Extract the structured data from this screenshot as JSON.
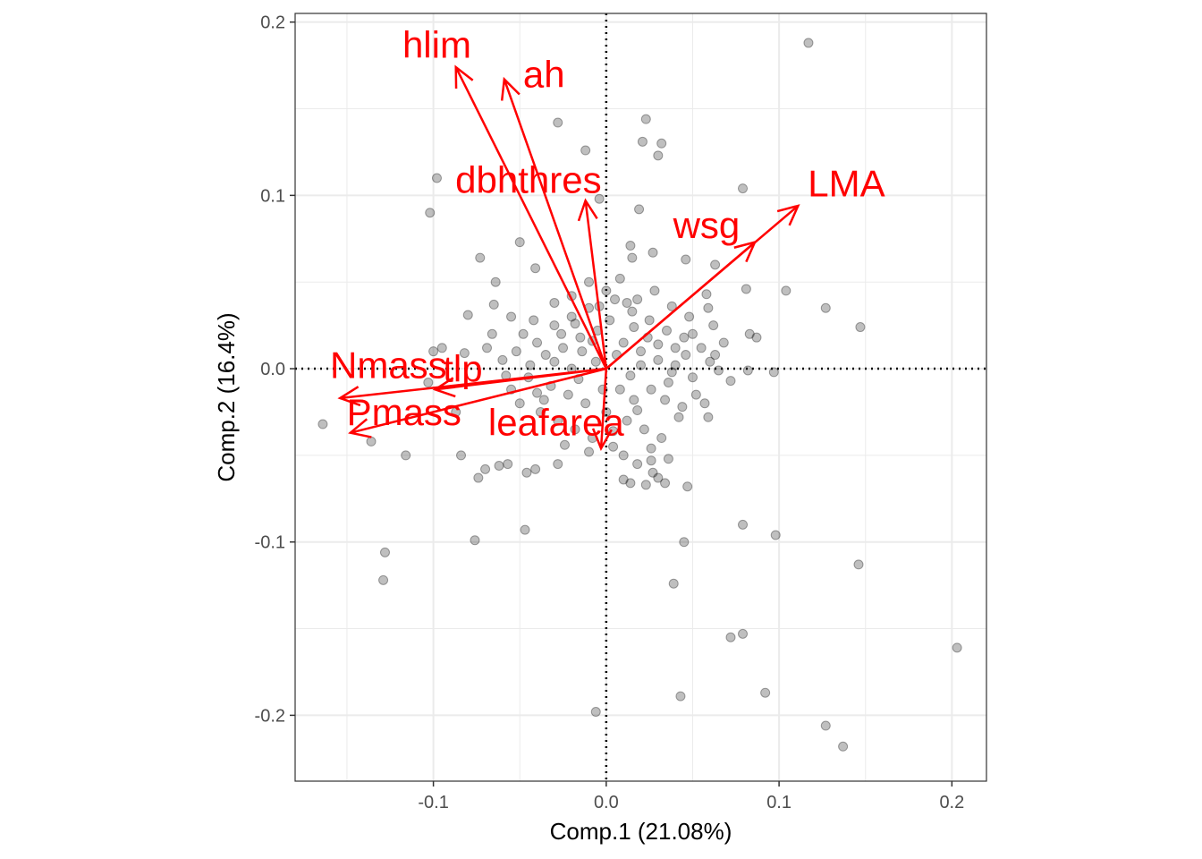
{
  "chart_data": {
    "type": "scatter",
    "title": "",
    "xlabel": "Comp.1 (21.08%)",
    "ylabel": "Comp.2 (16.4%)",
    "xlim": [
      -0.18,
      0.22
    ],
    "ylim": [
      -0.238,
      0.205
    ],
    "x_ticks": [
      -0.1,
      0.0,
      0.1,
      0.2
    ],
    "x_tick_labels": [
      "-0.1",
      "0.0",
      "0.1",
      "0.2"
    ],
    "y_ticks": [
      -0.2,
      -0.1,
      0.0,
      0.1,
      0.2
    ],
    "y_tick_labels": [
      "-0.2",
      "-0.1",
      "0.0",
      "0.1",
      "0.2"
    ],
    "grid": true,
    "reference_lines": {
      "x": 0,
      "y": 0,
      "style": "dotted"
    },
    "colors": {
      "points": "#000000",
      "vectors": "#ff0000",
      "grid": "#ebebeb",
      "panel_border": "#333333"
    },
    "points": [
      [
        0.117,
        0.188
      ],
      [
        0.023,
        0.144
      ],
      [
        -0.028,
        0.142
      ],
      [
        0.021,
        0.131
      ],
      [
        0.032,
        0.13
      ],
      [
        0.03,
        0.123
      ],
      [
        -0.012,
        0.126
      ],
      [
        0.079,
        0.104
      ],
      [
        -0.098,
        0.11
      ],
      [
        -0.004,
        0.098
      ],
      [
        -0.102,
        0.09
      ],
      [
        0.019,
        0.092
      ],
      [
        -0.05,
        0.073
      ],
      [
        -0.073,
        0.064
      ],
      [
        0.014,
        0.071
      ],
      [
        0.027,
        0.067
      ],
      [
        0.046,
        0.063
      ],
      [
        0.015,
        0.064
      ],
      [
        -0.041,
        0.058
      ],
      [
        0.063,
        0.06
      ],
      [
        0.081,
        0.046
      ],
      [
        0.104,
        0.045
      ],
      [
        -0.064,
        0.05
      ],
      [
        0.058,
        0.043
      ],
      [
        0.059,
        0.035
      ],
      [
        0.127,
        0.035
      ],
      [
        0.147,
        0.024
      ],
      [
        -0.08,
        0.031
      ],
      [
        -0.065,
        0.037
      ],
      [
        -0.055,
        0.03
      ],
      [
        0.062,
        0.025
      ],
      [
        0.083,
        0.02
      ],
      [
        0.087,
        0.018
      ],
      [
        -0.069,
        0.012
      ],
      [
        -0.082,
        0.009
      ],
      [
        -0.095,
        0.012
      ],
      [
        -0.1,
        0.01
      ],
      [
        0.063,
        0.008
      ],
      [
        0.082,
        -0.001
      ],
      [
        0.097,
        -0.002
      ],
      [
        0.065,
        -0.001
      ],
      [
        0.072,
        -0.007
      ],
      [
        -0.103,
        -0.008
      ],
      [
        0.057,
        -0.02
      ],
      [
        0.059,
        -0.028
      ],
      [
        -0.087,
        -0.025
      ],
      [
        -0.164,
        -0.032
      ],
      [
        -0.136,
        -0.042
      ],
      [
        -0.116,
        -0.05
      ],
      [
        -0.084,
        -0.05
      ],
      [
        -0.07,
        -0.058
      ],
      [
        -0.062,
        -0.056
      ],
      [
        -0.057,
        -0.055
      ],
      [
        -0.046,
        -0.06
      ],
      [
        -0.028,
        -0.055
      ],
      [
        -0.074,
        -0.063
      ],
      [
        -0.041,
        -0.058
      ],
      [
        0.018,
        -0.055
      ],
      [
        0.026,
        -0.053
      ],
      [
        0.036,
        -0.052
      ],
      [
        0.014,
        -0.066
      ],
      [
        0.027,
        -0.06
      ],
      [
        0.03,
        -0.063
      ],
      [
        0.034,
        -0.066
      ],
      [
        0.047,
        -0.068
      ],
      [
        0.023,
        -0.067
      ],
      [
        0.01,
        -0.064
      ],
      [
        -0.047,
        -0.093
      ],
      [
        -0.076,
        -0.099
      ],
      [
        0.079,
        -0.09
      ],
      [
        0.098,
        -0.096
      ],
      [
        0.045,
        -0.1
      ],
      [
        0.146,
        -0.113
      ],
      [
        -0.128,
        -0.106
      ],
      [
        -0.129,
        -0.122
      ],
      [
        0.039,
        -0.124
      ],
      [
        0.072,
        -0.155
      ],
      [
        0.079,
        -0.153
      ],
      [
        0.203,
        -0.161
      ],
      [
        0.043,
        -0.189
      ],
      [
        0.092,
        -0.187
      ],
      [
        -0.006,
        -0.198
      ],
      [
        0.127,
        -0.206
      ],
      [
        0.137,
        -0.218
      ],
      [
        -0.03,
        0.025
      ],
      [
        -0.02,
        0.03
      ],
      [
        -0.01,
        0.035
      ],
      [
        0.005,
        0.04
      ],
      [
        0.015,
        0.033
      ],
      [
        0.025,
        0.028
      ],
      [
        0.035,
        0.022
      ],
      [
        0.045,
        0.018
      ],
      [
        -0.04,
        0.015
      ],
      [
        -0.035,
        0.008
      ],
      [
        -0.025,
        0.012
      ],
      [
        -0.015,
        0.018
      ],
      [
        -0.005,
        0.022
      ],
      [
        0.01,
        0.015
      ],
      [
        0.02,
        0.01
      ],
      [
        0.03,
        0.005
      ],
      [
        0.04,
        0.002
      ],
      [
        0.05,
        -0.005
      ],
      [
        -0.045,
        -0.005
      ],
      [
        -0.032,
        -0.01
      ],
      [
        -0.022,
        -0.015
      ],
      [
        -0.012,
        -0.02
      ],
      [
        0.0,
        -0.025
      ],
      [
        0.012,
        -0.03
      ],
      [
        0.022,
        -0.035
      ],
      [
        0.032,
        -0.04
      ],
      [
        0.042,
        -0.028
      ],
      [
        -0.05,
        -0.02
      ],
      [
        -0.038,
        -0.025
      ],
      [
        -0.028,
        -0.03
      ],
      [
        -0.018,
        -0.035
      ],
      [
        -0.008,
        -0.04
      ],
      [
        0.004,
        -0.045
      ],
      [
        0.016,
        -0.018
      ],
      [
        0.026,
        -0.012
      ],
      [
        0.036,
        -0.008
      ],
      [
        -0.06,
        0.005
      ],
      [
        -0.055,
        -0.012
      ],
      [
        -0.048,
        0.02
      ],
      [
        -0.042,
        0.028
      ],
      [
        -0.01,
        0.05
      ],
      [
        0.0,
        0.045
      ],
      [
        0.008,
        0.052
      ],
      [
        0.018,
        0.04
      ],
      [
        0.028,
        0.045
      ],
      [
        0.038,
        0.036
      ],
      [
        0.048,
        0.03
      ],
      [
        -0.02,
        0.042
      ],
      [
        -0.03,
        0.038
      ],
      [
        0.055,
        0.012
      ],
      [
        0.052,
        -0.015
      ],
      [
        0.044,
        -0.022
      ],
      [
        0.006,
        0.008
      ],
      [
        -0.006,
        0.004
      ],
      [
        0.014,
        -0.004
      ],
      [
        -0.016,
        -0.006
      ],
      [
        0.024,
        0.018
      ],
      [
        -0.026,
        0.02
      ],
      [
        0.034,
        -0.018
      ],
      [
        -0.036,
        -0.018
      ],
      [
        0.002,
        0.028
      ],
      [
        -0.002,
        -0.012
      ],
      [
        0.018,
        -0.024
      ],
      [
        -0.014,
        0.01
      ],
      [
        0.04,
        0.012
      ],
      [
        -0.044,
        0.002
      ],
      [
        0.046,
        0.008
      ],
      [
        -0.052,
        0.01
      ],
      [
        0.012,
        0.038
      ],
      [
        -0.004,
        0.036
      ],
      [
        0.026,
        -0.046
      ],
      [
        -0.024,
        -0.044
      ],
      [
        0.01,
        -0.05
      ],
      [
        -0.01,
        -0.048
      ],
      [
        0.02,
        0.002
      ],
      [
        -0.02,
        0.0
      ],
      [
        0.03,
        0.014
      ],
      [
        -0.03,
        0.004
      ],
      [
        0.008,
        -0.012
      ],
      [
        -0.008,
        0.016
      ],
      [
        0.016,
        0.024
      ],
      [
        -0.018,
        0.026
      ],
      [
        0.038,
        -0.002
      ],
      [
        -0.04,
        -0.014
      ],
      [
        0.05,
        0.02
      ],
      [
        -0.058,
        -0.004
      ],
      [
        0.06,
        0.004
      ],
      [
        -0.066,
        0.02
      ],
      [
        0.068,
        0.015
      ],
      [
        0.004,
        -0.036
      ]
    ],
    "vectors": [
      {
        "label": "hlim",
        "x": -0.087,
        "y": 0.174
      },
      {
        "label": "ah",
        "x": -0.059,
        "y": 0.167
      },
      {
        "label": "dbhthres",
        "x": -0.012,
        "y": 0.097
      },
      {
        "label": "LMA",
        "x": 0.111,
        "y": 0.094
      },
      {
        "label": "wsg",
        "x": 0.086,
        "y": 0.073
      },
      {
        "label": "Nmass",
        "x": -0.154,
        "y": -0.017
      },
      {
        "label": "tlp",
        "x": -0.099,
        "y": -0.012
      },
      {
        "label": "Pmass",
        "x": -0.148,
        "y": -0.037
      },
      {
        "label": "leafarea",
        "x": -0.003,
        "y": -0.046
      }
    ],
    "vector_label_positions": [
      {
        "label": "hlim",
        "x": -0.098,
        "y": 0.187
      },
      {
        "label": "ah",
        "x": -0.036,
        "y": 0.17
      },
      {
        "label": "dbhthres",
        "x": -0.045,
        "y": 0.109
      },
      {
        "label": "LMA",
        "x": 0.139,
        "y": 0.107
      },
      {
        "label": "wsg",
        "x": 0.058,
        "y": 0.083
      },
      {
        "label": "Nmass",
        "x": -0.126,
        "y": 0.002
      },
      {
        "label": "tlp",
        "x": -0.083,
        "y": 0.0
      },
      {
        "label": "Pmass",
        "x": -0.117,
        "y": -0.025
      },
      {
        "label": "leafarea",
        "x": -0.029,
        "y": -0.031
      }
    ]
  }
}
